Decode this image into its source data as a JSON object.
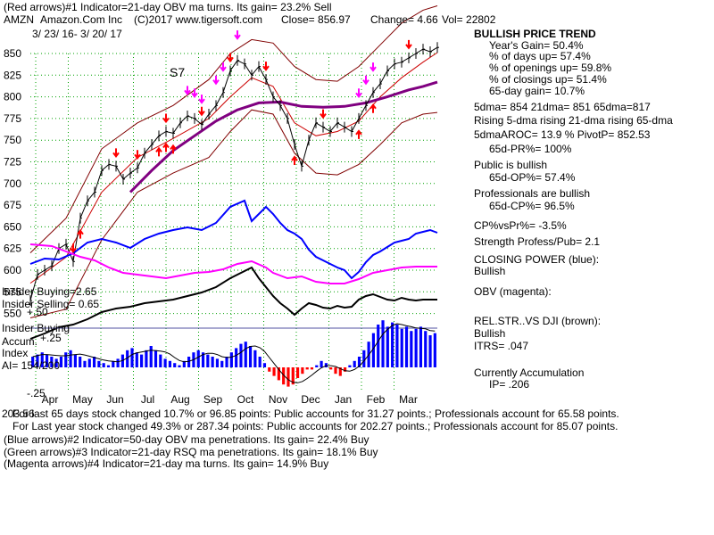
{
  "header": {
    "line1": "(Red arrows)#1 Indicator=21-day OBV ma turns. Its gain= 23.2% Sell",
    "ticker": "AMZN",
    "company": "Amazon.Com Inc",
    "copyright": "(C)2017 www.tigersoft.com",
    "close": "Close= 856.97",
    "change": "Change= 4.66",
    "vol": "Vol= 22802",
    "date_range": "3/ 23/ 16- 3/ 20/ 17",
    "signal_label": "S7"
  },
  "right_panel": {
    "trend_title": "BULLISH PRICE TREND",
    "years_gain": "Year's Gain= 50.4%",
    "days_up": "% of days up= 57.4%",
    "openings_up": "% of openings up= 59.8%",
    "closings_up": "% of closings up= 51.4%",
    "day65_gain": "65-day gain= 10.7%",
    "dma": "5dma= 854 21dma= 851 65dma=817",
    "rising": "Rising 5-dma rising 21-dma rising 65-dma",
    "aroc": "5dmaAROC= 13.9 %  PivotP= 852.53",
    "pr": "65d-PR%= 100%",
    "public_bullish": "Public is bullish",
    "op": "65d-OP%= 57.4%",
    "pros_bullish": "Professionals are bullish",
    "cp": "65d-CP%= 96.5%",
    "cpvspr": "CP%vsPr%= -3.5%",
    "strength": "Strength Profess/Pub= 2.1",
    "closing_power": "CLOSING POWER (blue):",
    "closing_bullish": "Bullish",
    "obv": "OBV (magenta):",
    "relstr": "REL.STR..VS DJI (brown):",
    "relstr_bullish": "Bullish",
    "itrs": "ITRS= .047",
    "accum": "Currently Accumulation",
    "ip": "IP=  .206"
  },
  "left_labels": {
    "insider_buying": "Insider Buying=2.65",
    "insider_selling": "Insider Selling= 0.65",
    "plus50": "+.50",
    "insider_buying2": "Insider Buying",
    "accum": "Accum.",
    "plus25": "+.25",
    "index": "Index",
    "ai": "AI= 154/200",
    "minus25": "-.25"
  },
  "bottom": {
    "line1": "For last 65 days stock changed  10.7% or  96.85 points:  Public accounts for  31.27 points.;  Professionals account for  65.58 points.",
    "line1_prefix": "203.56",
    "line2": "For Last year stock changed  49.3% or  287.34 points:  Public accounts for  202.27 points.;  Professionals account for  85.07 points.",
    "line3": "(Blue arrows)#2 Indicator=50-day OBV ma penetrations. Its gain= 22.4% Buy",
    "line4": "(Green arrows)#3 Indicator=21-day RSQ ma penetrations. Its gain= 18.1% Buy",
    "line5": "(Magenta arrows)#4 Indicator=21-day ma turns. Its gain= 14.9% Buy"
  },
  "colors": {
    "price": "#000000",
    "band": "#800000",
    "ma65": "#800080",
    "closing_power": "#0000ff",
    "obv": "#ff00ff",
    "relstr": "#000000",
    "grid": "#00a000",
    "red_arrow": "#ff0000",
    "magenta_arrow": "#ff00ff",
    "accum_pos": "#0000ff",
    "accum_neg": "#ff0000"
  },
  "chart_data": {
    "type": "line",
    "price_axis": {
      "ticks": [
        850,
        825,
        800,
        775,
        750,
        725,
        700,
        675,
        650,
        625,
        600,
        575,
        550
      ]
    },
    "x_ticks": [
      "Apr",
      "May",
      "Jun",
      "Jul",
      "Aug",
      "Sep",
      "Oct",
      "Nov",
      "Dec",
      "Jan",
      "Feb",
      "Mar"
    ],
    "price_series": {
      "name": "AMZN",
      "values": [
        [
          0,
          565
        ],
        [
          2,
          595
        ],
        [
          4,
          600
        ],
        [
          6,
          605
        ],
        [
          8,
          625
        ],
        [
          10,
          630
        ],
        [
          12,
          610
        ],
        [
          14,
          660
        ],
        [
          16,
          680
        ],
        [
          18,
          690
        ],
        [
          20,
          715
        ],
        [
          22,
          722
        ],
        [
          24,
          720
        ],
        [
          26,
          705
        ],
        [
          28,
          712
        ],
        [
          30,
          718
        ],
        [
          32,
          735
        ],
        [
          34,
          745
        ],
        [
          36,
          755
        ],
        [
          38,
          760
        ],
        [
          40,
          758
        ],
        [
          42,
          770
        ],
        [
          44,
          778
        ],
        [
          46,
          775
        ],
        [
          48,
          768
        ],
        [
          50,
          780
        ],
        [
          52,
          790
        ],
        [
          54,
          805
        ],
        [
          56,
          830
        ],
        [
          58,
          842
        ],
        [
          60,
          838
        ],
        [
          62,
          825
        ],
        [
          64,
          835
        ],
        [
          66,
          820
        ],
        [
          68,
          800
        ],
        [
          70,
          790
        ],
        [
          72,
          775
        ],
        [
          74,
          745
        ],
        [
          76,
          720
        ],
        [
          78,
          750
        ],
        [
          80,
          770
        ],
        [
          82,
          765
        ],
        [
          84,
          760
        ],
        [
          86,
          770
        ],
        [
          88,
          765
        ],
        [
          90,
          760
        ],
        [
          92,
          775
        ],
        [
          94,
          790
        ],
        [
          96,
          805
        ],
        [
          98,
          815
        ],
        [
          100,
          830
        ],
        [
          102,
          838
        ],
        [
          104,
          840
        ],
        [
          106,
          845
        ],
        [
          108,
          850
        ],
        [
          110,
          855
        ],
        [
          112,
          852
        ],
        [
          114,
          857
        ]
      ]
    },
    "upper_band": {
      "values": [
        [
          0,
          620
        ],
        [
          10,
          660
        ],
        [
          20,
          740
        ],
        [
          30,
          770
        ],
        [
          40,
          790
        ],
        [
          50,
          820
        ],
        [
          56,
          850
        ],
        [
          62,
          866
        ],
        [
          68,
          862
        ],
        [
          74,
          835
        ],
        [
          80,
          820
        ],
        [
          86,
          818
        ],
        [
          92,
          835
        ],
        [
          98,
          860
        ],
        [
          104,
          885
        ],
        [
          110,
          900
        ],
        [
          114,
          905
        ]
      ]
    },
    "lower_band": {
      "values": [
        [
          0,
          545
        ],
        [
          10,
          555
        ],
        [
          20,
          635
        ],
        [
          30,
          690
        ],
        [
          40,
          712
        ],
        [
          50,
          730
        ],
        [
          56,
          760
        ],
        [
          62,
          785
        ],
        [
          68,
          780
        ],
        [
          74,
          735
        ],
        [
          80,
          712
        ],
        [
          86,
          710
        ],
        [
          92,
          722
        ],
        [
          98,
          745
        ],
        [
          104,
          770
        ],
        [
          110,
          780
        ],
        [
          114,
          782
        ]
      ]
    },
    "ma21": {
      "values": [
        [
          0,
          585
        ],
        [
          10,
          615
        ],
        [
          20,
          690
        ],
        [
          30,
          730
        ],
        [
          40,
          752
        ],
        [
          50,
          775
        ],
        [
          56,
          800
        ],
        [
          62,
          822
        ],
        [
          68,
          812
        ],
        [
          74,
          770
        ],
        [
          80,
          755
        ],
        [
          86,
          760
        ],
        [
          92,
          772
        ],
        [
          98,
          800
        ],
        [
          104,
          822
        ],
        [
          110,
          840
        ],
        [
          114,
          851
        ]
      ]
    },
    "ma65": {
      "values": [
        [
          28,
          690
        ],
        [
          34,
          715
        ],
        [
          40,
          738
        ],
        [
          46,
          755
        ],
        [
          52,
          772
        ],
        [
          58,
          785
        ],
        [
          64,
          793
        ],
        [
          70,
          794
        ],
        [
          76,
          789
        ],
        [
          82,
          788
        ],
        [
          88,
          789
        ],
        [
          94,
          793
        ],
        [
          100,
          800
        ],
        [
          106,
          808
        ],
        [
          110,
          812
        ],
        [
          114,
          817
        ]
      ]
    },
    "closing_power": {
      "name": "CLOSING POWER (blue)",
      "values": [
        [
          0,
          296
        ],
        [
          4,
          290
        ],
        [
          8,
          291
        ],
        [
          12,
          284
        ],
        [
          16,
          272
        ],
        [
          20,
          268
        ],
        [
          24,
          272
        ],
        [
          28,
          278
        ],
        [
          32,
          268
        ],
        [
          36,
          262
        ],
        [
          40,
          258
        ],
        [
          44,
          255
        ],
        [
          48,
          258
        ],
        [
          52,
          250
        ],
        [
          56,
          232
        ],
        [
          60,
          225
        ],
        [
          62,
          248
        ],
        [
          64,
          240
        ],
        [
          66,
          232
        ],
        [
          68,
          240
        ],
        [
          70,
          250
        ],
        [
          72,
          258
        ],
        [
          74,
          262
        ],
        [
          76,
          268
        ],
        [
          78,
          280
        ],
        [
          80,
          288
        ],
        [
          82,
          292
        ],
        [
          84,
          296
        ],
        [
          86,
          300
        ],
        [
          88,
          303
        ],
        [
          90,
          312
        ],
        [
          92,
          305
        ],
        [
          94,
          294
        ],
        [
          96,
          286
        ],
        [
          98,
          282
        ],
        [
          100,
          277
        ],
        [
          102,
          272
        ],
        [
          104,
          270
        ],
        [
          106,
          268
        ],
        [
          108,
          262
        ],
        [
          110,
          260
        ],
        [
          112,
          258
        ],
        [
          114,
          261
        ]
      ]
    },
    "obv": {
      "name": "OBV (magenta)",
      "values": [
        [
          0,
          274
        ],
        [
          6,
          276
        ],
        [
          10,
          282
        ],
        [
          14,
          288
        ],
        [
          18,
          292
        ],
        [
          22,
          300
        ],
        [
          26,
          306
        ],
        [
          30,
          308
        ],
        [
          34,
          310
        ],
        [
          38,
          312
        ],
        [
          42,
          309
        ],
        [
          46,
          306
        ],
        [
          50,
          305
        ],
        [
          54,
          302
        ],
        [
          58,
          296
        ],
        [
          62,
          293
        ],
        [
          66,
          300
        ],
        [
          68,
          306
        ],
        [
          70,
          309
        ],
        [
          72,
          312
        ],
        [
          76,
          310
        ],
        [
          80,
          316
        ],
        [
          84,
          318
        ],
        [
          88,
          318
        ],
        [
          92,
          313
        ],
        [
          96,
          306
        ],
        [
          100,
          303
        ],
        [
          104,
          300
        ],
        [
          108,
          299
        ],
        [
          112,
          299
        ],
        [
          114,
          299
        ]
      ]
    },
    "relstr": {
      "name": "REL.STR..VS DJI (brown)",
      "values": [
        [
          0,
          380
        ],
        [
          4,
          374
        ],
        [
          8,
          367
        ],
        [
          12,
          364
        ],
        [
          16,
          358
        ],
        [
          20,
          350
        ],
        [
          24,
          346
        ],
        [
          28,
          344
        ],
        [
          32,
          340
        ],
        [
          36,
          338
        ],
        [
          40,
          336
        ],
        [
          44,
          332
        ],
        [
          48,
          328
        ],
        [
          52,
          322
        ],
        [
          56,
          312
        ],
        [
          60,
          304
        ],
        [
          62,
          300
        ],
        [
          64,
          312
        ],
        [
          66,
          322
        ],
        [
          68,
          332
        ],
        [
          70,
          340
        ],
        [
          72,
          346
        ],
        [
          74,
          353
        ],
        [
          76,
          346
        ],
        [
          78,
          340
        ],
        [
          80,
          342
        ],
        [
          82,
          345
        ],
        [
          84,
          346
        ],
        [
          86,
          343
        ],
        [
          88,
          345
        ],
        [
          90,
          344
        ],
        [
          92,
          336
        ],
        [
          94,
          332
        ],
        [
          96,
          330
        ],
        [
          98,
          333
        ],
        [
          100,
          336
        ],
        [
          102,
          337
        ],
        [
          104,
          334
        ],
        [
          106,
          336
        ],
        [
          108,
          337
        ],
        [
          110,
          336
        ],
        [
          112,
          336
        ],
        [
          114,
          336
        ]
      ]
    },
    "accumulation": {
      "name": "Accum. Index",
      "values": [
        0.1,
        0.12,
        0.14,
        0.12,
        0.1,
        0.08,
        0.1,
        0.14,
        0.16,
        0.12,
        0.1,
        0.06,
        0.08,
        0.1,
        0.06,
        0.04,
        0.02,
        0.06,
        0.08,
        0.12,
        0.16,
        0.18,
        0.14,
        0.12,
        0.16,
        0.2,
        0.16,
        0.12,
        0.08,
        0.06,
        0.04,
        0.02,
        0.06,
        0.1,
        0.14,
        0.16,
        0.14,
        0.12,
        0.1,
        0.08,
        0.06,
        0.1,
        0.14,
        0.18,
        0.22,
        0.24,
        0.2,
        0.16,
        0.1,
        0.04,
        -0.04,
        -0.08,
        -0.12,
        -0.16,
        -0.18,
        -0.16,
        -0.1,
        -0.06,
        -0.02,
        -0.02,
        0.02,
        0.06,
        0.04,
        -0.02,
        -0.06,
        -0.08,
        -0.04,
        0.02,
        0.06,
        0.1,
        0.16,
        0.24,
        0.32,
        0.4,
        0.44,
        0.38,
        0.42,
        0.4,
        0.36,
        0.38,
        0.34,
        0.36,
        0.38,
        0.34,
        0.3,
        0.32
      ]
    },
    "red_arrows_down": [
      12,
      24,
      30,
      38,
      48,
      56,
      66,
      82,
      106
    ],
    "red_arrows_up": [
      14,
      36,
      38,
      40,
      74,
      92,
      96
    ],
    "magenta_arrows_down": [
      44,
      46,
      48,
      52,
      54,
      58,
      92,
      94,
      96
    ],
    "price_ylim": [
      535,
      875
    ],
    "grid": true
  }
}
